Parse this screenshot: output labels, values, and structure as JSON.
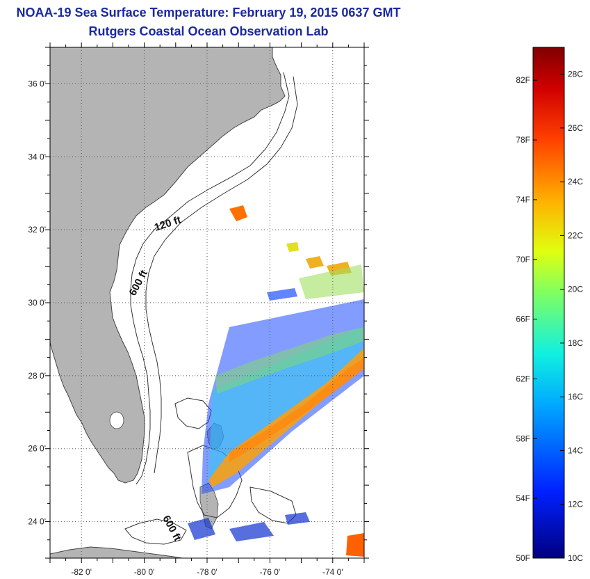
{
  "header": {
    "title": "NOAA-19 Sea Surface Temperature:  February 19, 2015 0637 GMT",
    "subtitle": "Rutgers Coastal Ocean Observation Lab"
  },
  "map": {
    "lon_range": [
      -83,
      -73
    ],
    "lat_range": [
      23,
      37
    ],
    "lon_ticks": [
      "-82 0'",
      "-80 0'",
      "-78 0'",
      "-76 0'",
      "-74 0'"
    ],
    "lat_ticks": [
      "36 0'",
      "34 0'",
      "32 0'",
      "30 0'",
      "28 0'",
      "26 0'",
      "24 0'"
    ],
    "grid": true,
    "land_color": "#b4b4b4",
    "contour_labels": [
      "120 ft",
      "600 ft",
      "600 ft"
    ]
  },
  "colorbar": {
    "fahrenheit_labels": [
      "82F",
      "78F",
      "74F",
      "70F",
      "66F",
      "62F",
      "58F",
      "54F",
      "50F"
    ],
    "celsius_labels": [
      "28C",
      "26C",
      "24C",
      "22C",
      "20C",
      "18C",
      "16C",
      "14C",
      "12C",
      "10C"
    ],
    "range_c": [
      10,
      29
    ]
  }
}
